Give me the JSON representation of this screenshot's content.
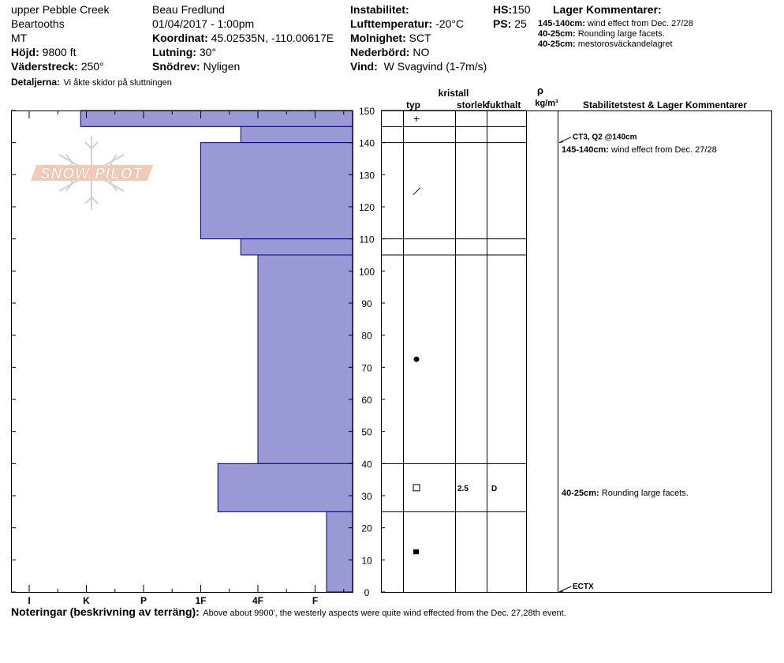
{
  "header": {
    "location": "upper Pebble Creek",
    "range": "Beartooths",
    "state": "MT",
    "elevation_label": "Höjd:",
    "elevation_value": "9800 ft",
    "aspect_label": "Väderstreck:",
    "aspect_value": "250°",
    "details_label": "Detaljerna:",
    "details_value": "Vi åkte skidor på sluttningen",
    "observer": "Beau  Fredlund",
    "datetime": "01/04/2017 - 1:00pm",
    "coord_label": "Koordinat:",
    "coord_value": "45.02535N, -110.00617E",
    "slope_label": "Lutning:",
    "slope_value": "30°",
    "drift_label": "Snödrev:",
    "drift_value": "Nyligen",
    "instability_label": "Instabilitet:",
    "airtemp_label": "Lufttemperatur:",
    "airtemp_value": "-20°C",
    "sky_label": "Molnighet:",
    "sky_value": "SCT",
    "precip_label": "Nederbörd:",
    "precip_value": "NO",
    "wind_label": "Vind:",
    "wind_value": "W Svagvind (1-7m/s)",
    "hs_label": "HS:",
    "hs_value": "150",
    "ps_label": "PS:",
    "ps_value": "25",
    "layer_comments_title": "Lager Kommentarer:",
    "layer_comments": [
      {
        "range": "145-140cm:",
        "text": "wind effect from Dec. 27/28"
      },
      {
        "range": "40-25cm:",
        "text": "Rounding large facets."
      },
      {
        "range": "40-25cm:",
        "text": "mestorosväckandelagret"
      }
    ]
  },
  "logo_text": "SNOW PILOT",
  "columns": {
    "kristall": "kristall",
    "typ": "typ",
    "storlek": "storlek",
    "fukthalt": "fukthalt",
    "rho": "ρ",
    "density_unit": "kg/m³",
    "stability": "Stabilitetstest & Lager Kommentarer"
  },
  "chart_data": {
    "type": "bar",
    "orientation": "horizontal",
    "y_range": [
      0,
      150
    ],
    "y_ticks": [
      0,
      10,
      20,
      30,
      40,
      50,
      60,
      70,
      80,
      90,
      100,
      110,
      120,
      130,
      140,
      150
    ],
    "hardness_scale": [
      "I",
      "K",
      "P",
      "1F",
      "4F",
      "F"
    ],
    "layers": [
      {
        "top": 150,
        "bottom": 145,
        "hardness": 0.9
      },
      {
        "top": 145,
        "bottom": 140,
        "hardness": 3.7
      },
      {
        "top": 140,
        "bottom": 110,
        "hardness": 3.0
      },
      {
        "top": 110,
        "bottom": 105,
        "hardness": 3.7
      },
      {
        "top": 105,
        "bottom": 40,
        "hardness": 4.0
      },
      {
        "top": 40,
        "bottom": 25,
        "hardness": 3.3
      },
      {
        "top": 25,
        "bottom": 0,
        "hardness": 5.2
      }
    ],
    "layer_lines": [
      150,
      145,
      140,
      110,
      105,
      40,
      25
    ],
    "grains": [
      {
        "height": 147.5,
        "symbol": "+"
      },
      {
        "height": 125,
        "symbol": "/"
      },
      {
        "height": 72.5,
        "symbol": "●"
      },
      {
        "height": 32.5,
        "symbol": "□",
        "size": "2.5",
        "moisture": "D"
      },
      {
        "height": 12.5,
        "symbol": "■"
      }
    ],
    "tests": [
      {
        "height": 140,
        "text": "CT3, Q2 @140cm"
      },
      {
        "height": 0,
        "text": "ECTX"
      }
    ],
    "comments": [
      {
        "height": 138,
        "range": "145-140cm:",
        "text": "wind effect from Dec. 27/28"
      },
      {
        "height": 31,
        "range": "40-25cm:",
        "text": "Rounding large facets."
      }
    ]
  },
  "notes": {
    "label": "Noteringar (beskrivning av terräng):",
    "text": "Above about 9900', the westerly aspects were quite wind effected from the Dec. 27,28th event."
  }
}
